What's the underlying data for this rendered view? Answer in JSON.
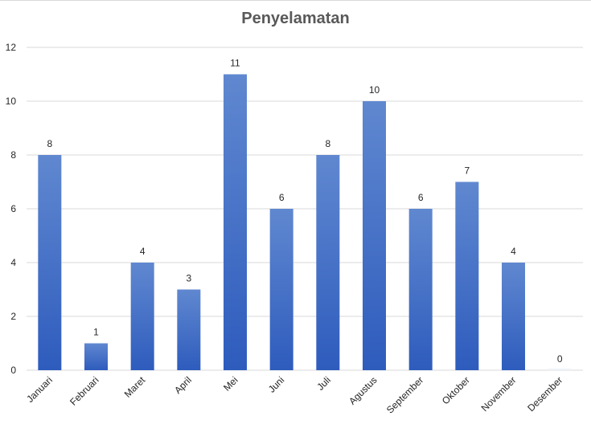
{
  "chart_data": {
    "type": "bar",
    "title": "Penyelamatan",
    "categories": [
      "Januari",
      "Februari",
      "Maret",
      "April",
      "Mei",
      "Juni",
      "Juli",
      "Agustus",
      "September",
      "Oktober",
      "November",
      "Desember"
    ],
    "values": [
      8,
      1,
      4,
      3,
      11,
      6,
      8,
      10,
      6,
      7,
      4,
      0
    ],
    "ylim": [
      0,
      12
    ],
    "yticks": [
      0,
      2,
      4,
      6,
      8,
      10,
      12
    ],
    "grid": true,
    "data_labels": true,
    "colors": {
      "bar_top": "#6088d0",
      "bar_bottom": "#2e5cbd",
      "grid": "#d9d9d9",
      "text": "#262626",
      "title": "#595959"
    }
  }
}
